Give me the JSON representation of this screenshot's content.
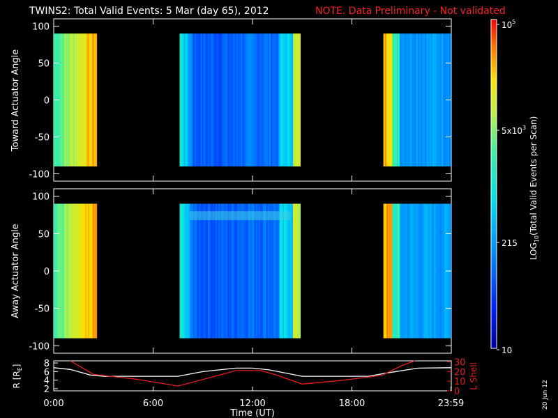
{
  "header": {
    "title": "TWINS2: Total Valid Events:  5 Mar (day  65), 2012",
    "note": "NOTE. Data Preliminary - Not validated"
  },
  "footer": {
    "date_stamp": "20 Jun 12"
  },
  "colors": {
    "note": "#ff2020",
    "lshell": "#e81e1e",
    "radius": "#ffffff",
    "bg": "#000000"
  },
  "chart_data": [
    {
      "type": "heatmap",
      "ylabel": "Toward Actuator Angle",
      "ylim": [
        -110,
        110
      ],
      "y_ticks": [
        "100",
        "50",
        "0",
        "-50",
        "-100"
      ],
      "angle_range": [
        -90,
        90
      ],
      "data_intervals_hours": [
        [
          0.0,
          2.6
        ],
        [
          7.6,
          14.9
        ],
        [
          19.9,
          23.98
        ]
      ]
    },
    {
      "type": "heatmap",
      "ylabel": "Away Actuator Angle",
      "ylim": [
        -110,
        110
      ],
      "y_ticks": [
        "100",
        "50",
        "0",
        "-50",
        "-100"
      ],
      "angle_range": [
        -90,
        90
      ],
      "data_intervals_hours": [
        [
          0.0,
          2.6
        ],
        [
          7.6,
          14.9
        ],
        [
          19.9,
          23.98
        ]
      ]
    },
    {
      "type": "line",
      "xlabel": "Time (UT)",
      "x_ticks": [
        "0:00",
        "6:00",
        "12:00",
        "18:00",
        "23:59"
      ],
      "ylabel_left": "R [RE]",
      "ylabel_left_main": "R [R",
      "ylabel_left_sub": "E",
      "ylabel_left_end": "]",
      "ylabel_right": "L Shell",
      "left_ticks": [
        "8",
        "6",
        "4",
        "2"
      ],
      "right_ticks": [
        "30",
        "20",
        "10",
        "0"
      ],
      "ylim_left": [
        1.5,
        8.5
      ],
      "ylim_right": [
        0,
        31
      ],
      "series": [
        {
          "axis": "left",
          "x": [
            0.0,
            1.0,
            2.2,
            3.0,
            5.0,
            7.5,
            9.0,
            11.0,
            12.0,
            13.0,
            15.0,
            17.0,
            19.0,
            20.0,
            22.0,
            24.0
          ],
          "values": [
            6.9,
            6.5,
            5.2,
            4.9,
            4.9,
            4.9,
            6.0,
            6.8,
            6.8,
            6.4,
            4.9,
            4.9,
            4.9,
            5.6,
            6.8,
            6.9
          ]
        },
        {
          "axis": "right",
          "x": [
            1.0,
            2.4,
            5.0,
            7.5,
            9.5,
            11.0,
            12.5,
            13.5,
            15.0,
            17.5,
            19.8,
            21.0,
            21.8
          ],
          "values": [
            31,
            17,
            12,
            5,
            14,
            21,
            21,
            16,
            7,
            11,
            16,
            26,
            31
          ]
        }
      ]
    },
    {
      "type": "heatmap",
      "colorbar": true,
      "label_main": "LOG",
      "label_sub": "10",
      "label_rest": "(Total Valid Events per Scan)",
      "ticks": [
        {
          "base": "10",
          "exp": "5"
        },
        {
          "base": "5x10",
          "exp": "3"
        },
        {
          "base": "215",
          "exp": ""
        },
        {
          "base": "10",
          "exp": ""
        }
      ]
    }
  ]
}
